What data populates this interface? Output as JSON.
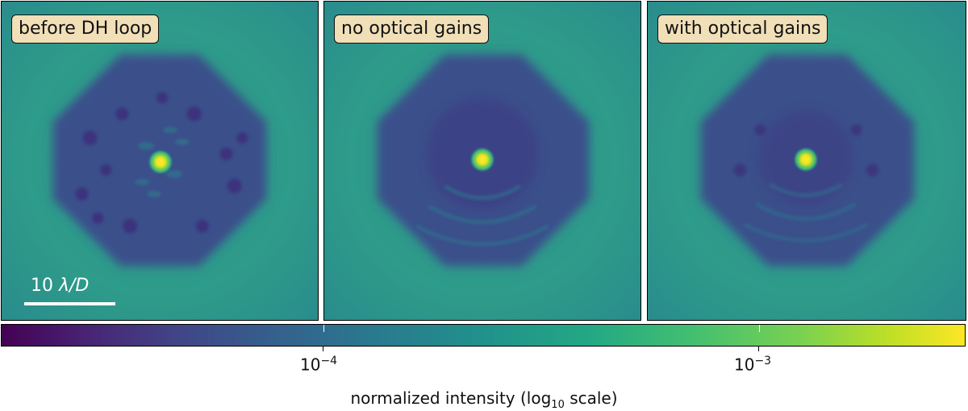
{
  "panels": [
    {
      "title": "before DH loop"
    },
    {
      "title": "no optical gains"
    },
    {
      "title": "with optical gains"
    }
  ],
  "scale_bar": {
    "prefix": "10 ",
    "unit": "λ/D"
  },
  "colorbar": {
    "ticks": [
      {
        "base": "10",
        "exponent": "−4",
        "value": 0.0001
      },
      {
        "base": "10",
        "exponent": "−3",
        "value": 0.001
      }
    ],
    "label_main": "normalized intensity (log",
    "label_sub": "10",
    "label_end": " scale)",
    "colormap": "viridis"
  },
  "colors": {
    "background": "#2f9b8a",
    "dark_hole": "#3b4f8a",
    "core": "#fde725",
    "tag_fill": "#f1dfb8"
  }
}
